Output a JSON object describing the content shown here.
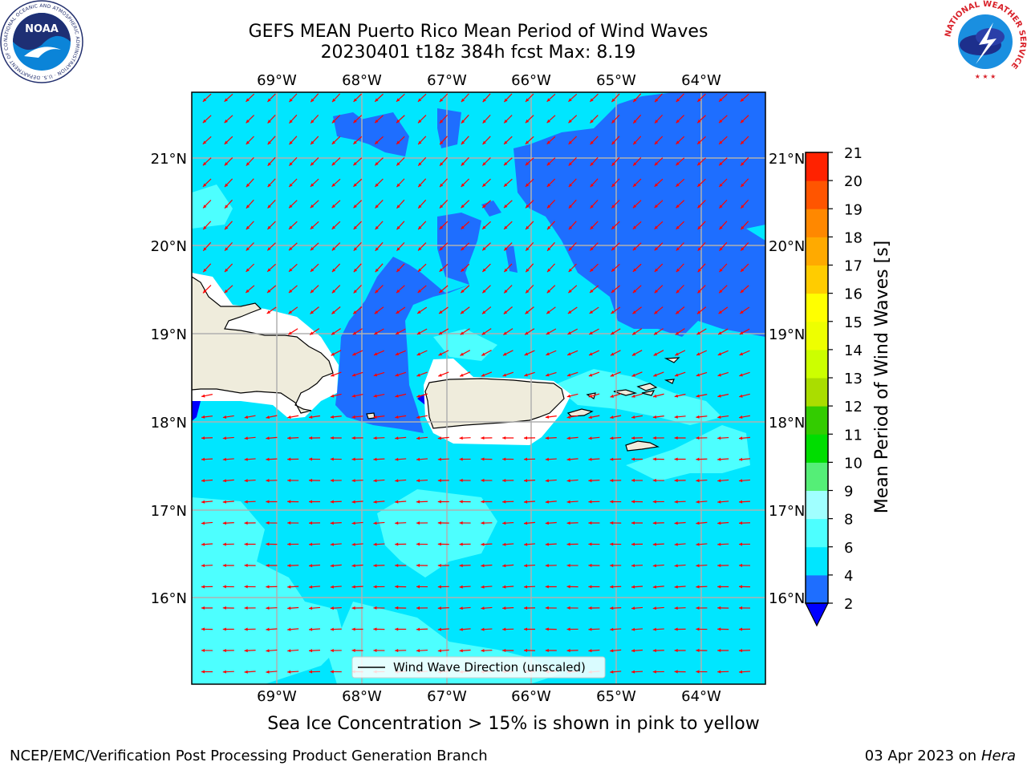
{
  "header": {
    "title_line1": "GEFS MEAN Puerto Rico Mean Period of Wind Waves",
    "title_line2": "20230401 t18z 384h fcst   Max: 8.19"
  },
  "logos": {
    "left": {
      "icon": "noaa-logo",
      "text": "NOAA",
      "ring_text": "NATIONAL OCEANIC AND ATMOSPHERIC ADMINISTRATION · U.S. DEPARTMENT OF COMMERCE"
    },
    "right": {
      "icon": "nws-logo",
      "ring_text": "NATIONAL WEATHER SERVICE"
    }
  },
  "map": {
    "longitude_labels": [
      "69°W",
      "68°W",
      "67°W",
      "66°W",
      "65°W",
      "64°W"
    ],
    "latitude_labels": [
      "21°N",
      "20°N",
      "19°N",
      "18°N",
      "17°N",
      "16°N"
    ],
    "legend_label": "Wind Wave Direction (unscaled)",
    "arrow_color": "#ff0000",
    "land_color": "#efecdc",
    "sea_ice_color": "#ffffff"
  },
  "colorbar": {
    "label": "Mean Period of Wind Waves [s]",
    "ticks": [
      "2",
      "4",
      "6",
      "8",
      "9",
      "10",
      "11",
      "12",
      "13",
      "14",
      "15",
      "16",
      "17",
      "18",
      "19",
      "20",
      "21"
    ],
    "colors": [
      "#1e6eff",
      "#00e6ff",
      "#4dffff",
      "#a0ffff",
      "#55ee77",
      "#00dd00",
      "#33cc00",
      "#aadd00",
      "#ccff00",
      "#eeff00",
      "#ffff00",
      "#ffcc00",
      "#ffaa00",
      "#ff8800",
      "#ff5500",
      "#ff2200"
    ],
    "underflow_color": "#0000ff"
  },
  "caption": "Sea Ice Concentration > 15% is shown in pink to yellow",
  "footer": {
    "left": "NCEP/EMC/Verification Post Processing Product Generation Branch",
    "date": "03 Apr 2023 on",
    "machine": "Hera"
  }
}
